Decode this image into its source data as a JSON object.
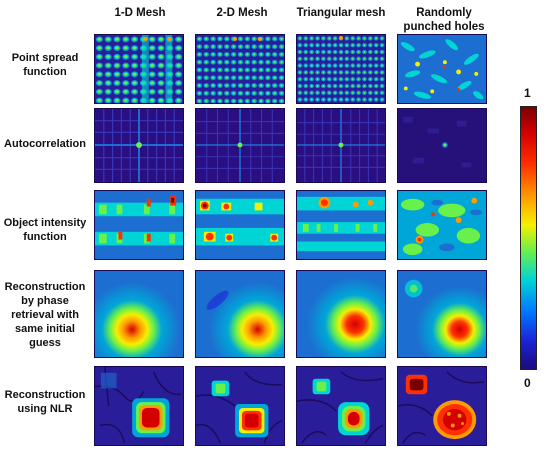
{
  "columns": [
    "1-D Mesh",
    "2-D Mesh",
    "Triangular mesh",
    "Randomly punched holes"
  ],
  "rows": [
    "Point spread function",
    "Autocorrelation",
    "Object intensity function",
    "Reconstruction by phase retrieval with same initial guess",
    "Reconstruction using NLR"
  ],
  "colorbar": {
    "max_label": "1",
    "min_label": "0"
  },
  "colors": {
    "background": "#2a0f82",
    "low": "#1b0a80",
    "mid": "#00d4d4",
    "high": "#d40000"
  }
}
